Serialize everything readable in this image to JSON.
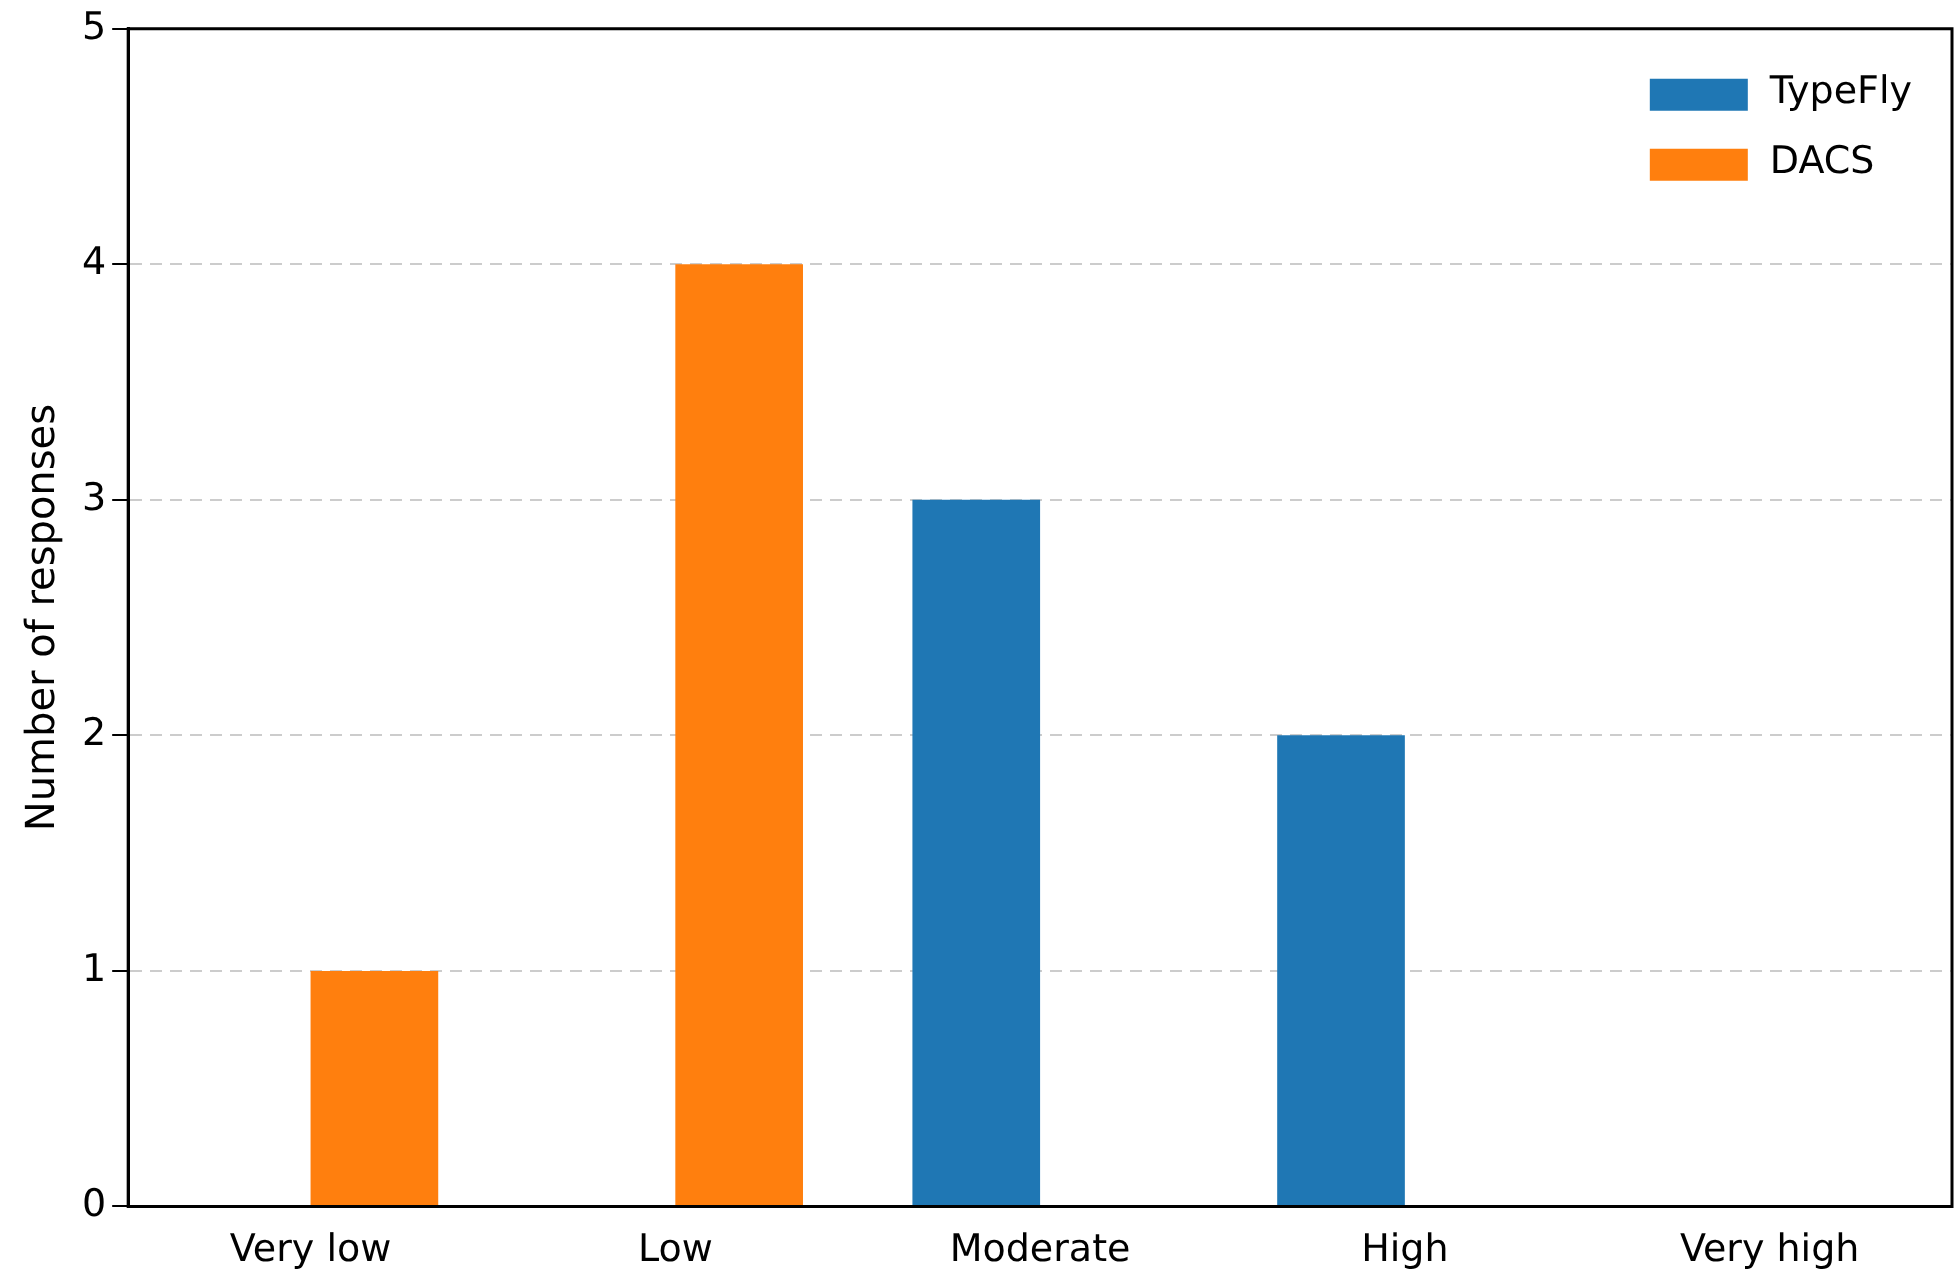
{
  "chart_data": {
    "type": "bar",
    "categories": [
      "Very low",
      "Low",
      "Moderate",
      "High",
      "Very high"
    ],
    "ylabel": "Number of responses",
    "ylim": [
      0,
      5
    ],
    "yticks": [
      0,
      1,
      2,
      3,
      4,
      5
    ],
    "grid": "y",
    "legend": "top right",
    "series": [
      {
        "name": "TypeFly",
        "color": "#1f77b4",
        "values": [
          0,
          0,
          3,
          2,
          0
        ]
      },
      {
        "name": "DACS",
        "color": "#ff7f0e",
        "values": [
          1,
          4,
          0,
          0,
          0
        ]
      }
    ]
  }
}
